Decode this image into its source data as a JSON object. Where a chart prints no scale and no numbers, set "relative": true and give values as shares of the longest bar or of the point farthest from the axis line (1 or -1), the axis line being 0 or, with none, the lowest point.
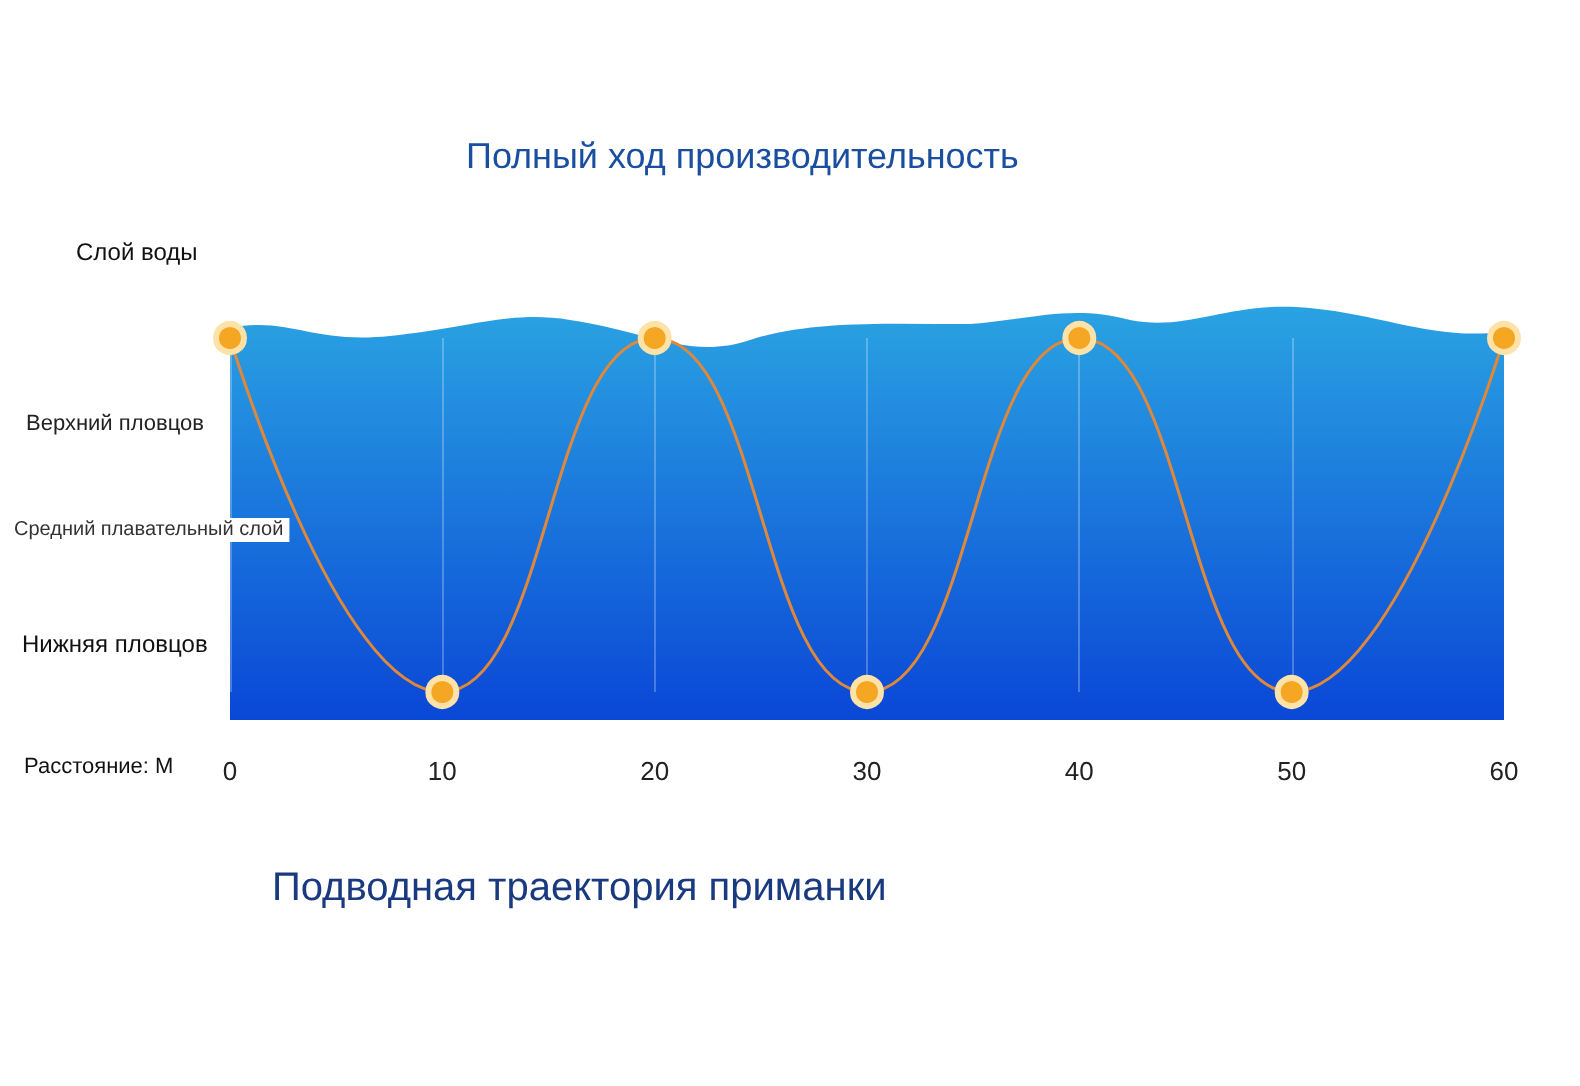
{
  "chart_data": {
    "type": "line",
    "title": "Полный ход производительность",
    "xlabel": "Расстояние: М",
    "annotations": [
      "Слой воды",
      "Верхний пловцов",
      "Средний плавательный слой",
      "Нижняя пловцов",
      "Подводная траектория приманки"
    ],
    "relative": true,
    "x": [
      0,
      10,
      20,
      30,
      40,
      50,
      60
    ],
    "series": [
      {
        "color": "#e0883a",
        "values": [
          1,
          0,
          1,
          0,
          1,
          0,
          1
        ]
      }
    ],
    "xlim": [
      0,
      60
    ],
    "xticks": [
      0,
      10,
      20,
      30,
      40,
      50,
      60
    ],
    "grid": "x",
    "marker": "circle"
  }
}
